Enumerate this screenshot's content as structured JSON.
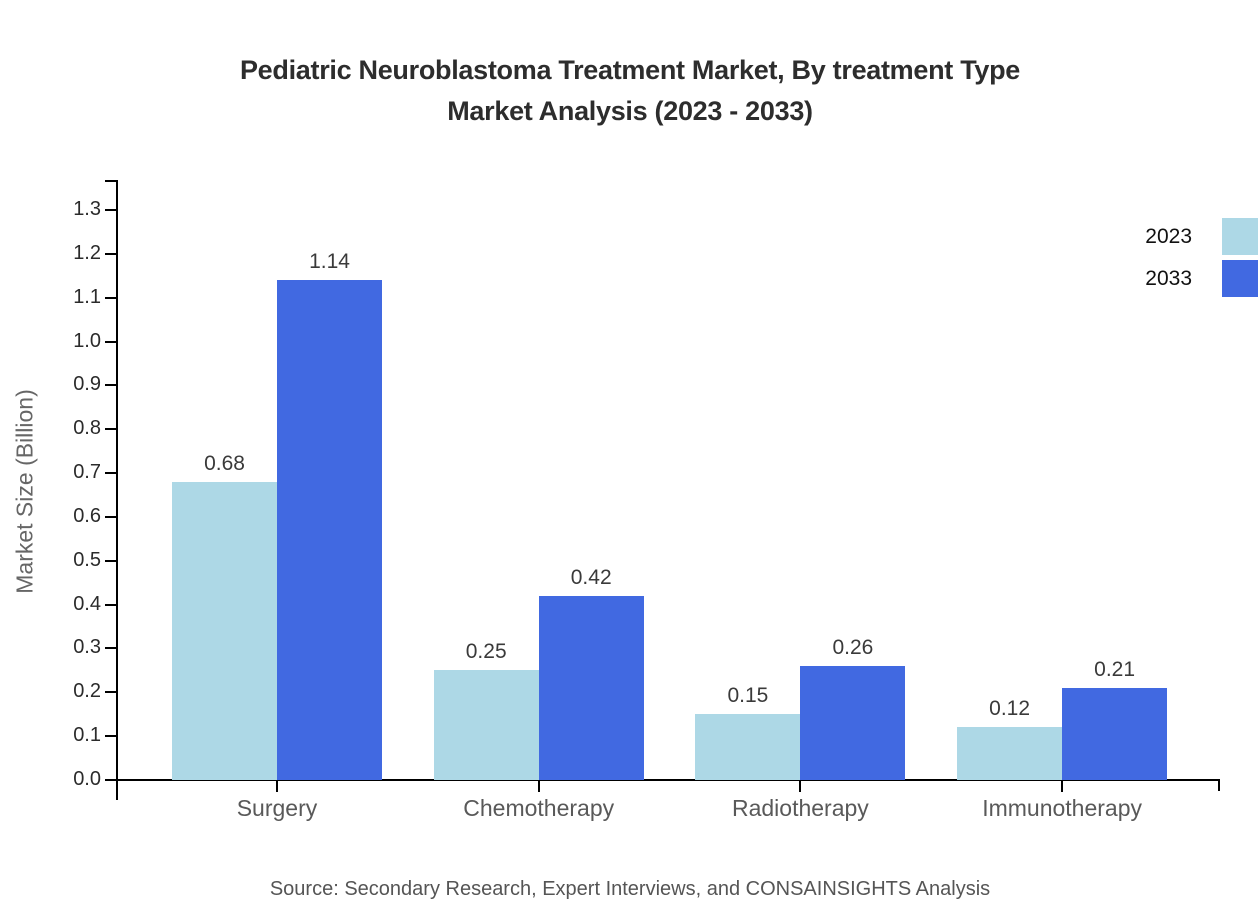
{
  "title": {
    "line1": "Pediatric Neuroblastoma Treatment Market, By treatment Type",
    "line2": "Market Analysis (2023 - 2033)"
  },
  "legend": [
    {
      "label": "2023",
      "color": "#ADD8E6"
    },
    {
      "label": "2033",
      "color": "#4169E1"
    }
  ],
  "y_axis": {
    "label": "Market Size (Billion)",
    "ticks": [
      "0.0",
      "0.1",
      "0.2",
      "0.3",
      "0.4",
      "0.5",
      "0.6",
      "0.7",
      "0.8",
      "0.9",
      "1.0",
      "1.1",
      "1.2",
      "1.3"
    ]
  },
  "source": "Source: Secondary Research, Expert Interviews, and CONSAINSIGHTS Analysis",
  "chart_data": {
    "type": "bar",
    "title": "Pediatric Neuroblastoma Treatment Market, By treatment Type Market Analysis (2023 - 2033)",
    "categories": [
      "Surgery",
      "Chemotherapy",
      "Radiotherapy",
      "Immunotherapy"
    ],
    "series": [
      {
        "name": "2023",
        "color": "#ADD8E6",
        "values": [
          0.68,
          0.25,
          0.15,
          0.12
        ]
      },
      {
        "name": "2033",
        "color": "#4169E1",
        "values": [
          1.14,
          0.42,
          0.26,
          0.21
        ]
      }
    ],
    "xlabel": "",
    "ylabel": "Market Size (Billion)",
    "ylim": [
      0,
      1.3
    ],
    "ytick_step": 0.1,
    "grid": false,
    "legend_position": "top-right",
    "bar_value_labels": true
  },
  "colors": {
    "axis": "#000000",
    "title_text": "#2d2d2d",
    "tick_text": "#2b2b2b",
    "category_text": "#595959",
    "value_text": "#3a3a3a",
    "muted_text": "#666666"
  }
}
